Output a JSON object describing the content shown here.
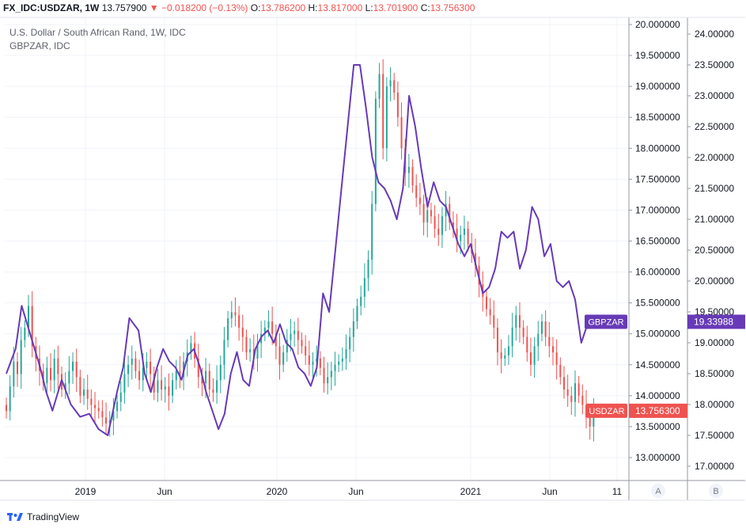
{
  "header": {
    "symbol": "FX_IDC:USDZAR, 1W",
    "last": "13.757900",
    "arrow": "▼",
    "change": "−0.018200 (−0.13%)",
    "o_label": "O:",
    "o_value": "13.786200",
    "h_label": "H:",
    "h_value": "13.817000",
    "l_label": "L:",
    "l_value": "13.701900",
    "c_label": "C:",
    "c_value": "13.756300"
  },
  "legend": {
    "main_title": "U.S. Dollar / South African Rand, 1W, IDC",
    "compare_title": "GBPZAR, IDC"
  },
  "scale_buttons": {
    "a": "A",
    "b": "B"
  },
  "branding": {
    "name": "TradingView"
  },
  "colors": {
    "up": "#26a69a",
    "down": "#ef5350",
    "compare_line": "#673ab7",
    "grid": "#f0f3fa",
    "axis_text": "#131722"
  },
  "chart_data": [
    {
      "type": "candlestick",
      "name": "USDZAR",
      "interval": "1W",
      "scale": "right",
      "ylim": [
        12.85,
        20.15
      ],
      "yticks": [
        "13.000000",
        "13.500000",
        "14.000000",
        "14.500000",
        "15.000000",
        "15.500000",
        "16.000000",
        "16.500000",
        "17.000000",
        "17.500000",
        "18.000000",
        "18.500000",
        "19.000000",
        "19.500000",
        "20.000000"
      ],
      "last_value_label": "13.756300",
      "closes": [
        13.75,
        14.15,
        14.55,
        14.35,
        14.9,
        15.1,
        15.45,
        14.8,
        14.6,
        14.4,
        14.2,
        14.45,
        14.25,
        14.6,
        14.35,
        14.1,
        14.2,
        14.4,
        14.55,
        14.3,
        14.0,
        14.1,
        13.95,
        13.85,
        13.8,
        13.75,
        13.65,
        13.55,
        13.6,
        13.75,
        13.9,
        14.05,
        14.35,
        14.5,
        14.6,
        14.4,
        14.25,
        14.45,
        14.55,
        14.35,
        14.05,
        14.25,
        14.1,
        14.15,
        14.0,
        14.25,
        14.4,
        14.3,
        14.55,
        14.7,
        14.85,
        14.6,
        14.3,
        14.2,
        14.4,
        14.1,
        14.05,
        14.25,
        14.5,
        14.9,
        15.25,
        15.35,
        15.3,
        15.1,
        14.95,
        14.7,
        14.75,
        14.6,
        14.85,
        15.0,
        15.1,
        15.2,
        15.0,
        14.8,
        14.5,
        14.7,
        14.9,
        15.0,
        15.05,
        14.9,
        14.8,
        14.65,
        14.5,
        14.55,
        14.6,
        14.45,
        14.2,
        14.3,
        14.4,
        14.5,
        14.55,
        14.6,
        14.75,
        14.95,
        15.2,
        15.45,
        15.6,
        15.9,
        16.2,
        17.1,
        18.8,
        19.2,
        18.0,
        19.0,
        19.1,
        18.9,
        18.5,
        18.0,
        17.6,
        17.7,
        17.4,
        17.2,
        17.1,
        16.8,
        17.0,
        16.9,
        16.7,
        16.6,
        16.9,
        17.1,
        16.8,
        16.7,
        16.5,
        16.6,
        16.7,
        16.45,
        16.3,
        16.1,
        15.8,
        15.6,
        15.4,
        15.3,
        15.1,
        14.7,
        14.6,
        14.65,
        14.8,
        15.1,
        15.3,
        15.1,
        14.95,
        14.7,
        14.5,
        14.8,
        15.0,
        15.2,
        14.95,
        14.8,
        14.7,
        14.5,
        14.3,
        14.1,
        14.0,
        13.9,
        14.2,
        14.0,
        13.85,
        13.65,
        13.5,
        13.75
      ],
      "x_ticks": [
        "2019",
        "Jun",
        "2020",
        "Jun",
        "2021",
        "Jun",
        "11"
      ]
    },
    {
      "type": "line",
      "name": "GBPZAR",
      "scale": "left",
      "ylim": [
        16.85,
        24.15
      ],
      "yticks": [
        "17.00000",
        "17.50000",
        "18.00000",
        "18.50000",
        "19.00000",
        "19.50000",
        "20.00000",
        "20.50000",
        "21.00000",
        "21.50000",
        "22.00000",
        "22.50000",
        "23.00000",
        "23.50000",
        "24.00000"
      ],
      "last_value_label": "19.33988",
      "points": [
        [
          0,
          18.5
        ],
        [
          3,
          18.9
        ],
        [
          5,
          19.6
        ],
        [
          8,
          19.1
        ],
        [
          11,
          18.6
        ],
        [
          13,
          18.2
        ],
        [
          15,
          17.9
        ],
        [
          18,
          18.4
        ],
        [
          21,
          18.0
        ],
        [
          24,
          17.8
        ],
        [
          27,
          17.85
        ],
        [
          30,
          17.6
        ],
        [
          33,
          17.5
        ],
        [
          36,
          18.2
        ],
        [
          38,
          18.6
        ],
        [
          40,
          19.4
        ],
        [
          43,
          19.2
        ],
        [
          45,
          18.5
        ],
        [
          47,
          18.2
        ],
        [
          49,
          18.6
        ],
        [
          51,
          18.9
        ],
        [
          53,
          18.7
        ],
        [
          55,
          18.6
        ],
        [
          57,
          18.4
        ],
        [
          59,
          18.8
        ],
        [
          61,
          18.9
        ],
        [
          63,
          18.6
        ],
        [
          65,
          18.2
        ],
        [
          67,
          17.9
        ],
        [
          69,
          17.6
        ],
        [
          71,
          17.85
        ],
        [
          73,
          18.5
        ],
        [
          75,
          18.85
        ],
        [
          77,
          18.4
        ],
        [
          79,
          18.3
        ],
        [
          81,
          18.9
        ],
        [
          83,
          19.1
        ],
        [
          85,
          19.2
        ],
        [
          87,
          19.0
        ],
        [
          89,
          19.3
        ],
        [
          91,
          19.0
        ],
        [
          93,
          18.9
        ],
        [
          95,
          18.6
        ],
        [
          97,
          18.5
        ],
        [
          99,
          18.3
        ],
        [
          101,
          18.6
        ],
        [
          103,
          19.8
        ],
        [
          105,
          19.5
        ],
        [
          107,
          20.5
        ],
        [
          109,
          21.5
        ],
        [
          111,
          22.5
        ],
        [
          113,
          23.5
        ],
        [
          115,
          23.5
        ],
        [
          117,
          22.8
        ],
        [
          119,
          22.0
        ],
        [
          121,
          21.6
        ],
        [
          123,
          21.5
        ],
        [
          125,
          21.3
        ],
        [
          127,
          21.0
        ],
        [
          129,
          21.5
        ],
        [
          131,
          23.0
        ],
        [
          133,
          22.5
        ],
        [
          135,
          21.8
        ],
        [
          137,
          21.2
        ],
        [
          139,
          21.6
        ],
        [
          141,
          21.3
        ],
        [
          143,
          21.2
        ],
        [
          145,
          20.9
        ],
        [
          147,
          20.6
        ],
        [
          149,
          20.4
        ],
        [
          151,
          20.6
        ],
        [
          153,
          20.2
        ],
        [
          155,
          19.8
        ],
        [
          157,
          19.9
        ],
        [
          159,
          20.2
        ],
        [
          161,
          20.8
        ],
        [
          163,
          20.7
        ],
        [
          165,
          20.8
        ],
        [
          167,
          20.2
        ],
        [
          169,
          20.5
        ],
        [
          171,
          21.2
        ],
        [
          173,
          21.0
        ],
        [
          175,
          20.4
        ],
        [
          177,
          20.6
        ],
        [
          179,
          20.0
        ],
        [
          181,
          19.9
        ],
        [
          183,
          20.0
        ],
        [
          185,
          19.7
        ],
        [
          187,
          19.0
        ],
        [
          189,
          19.3
        ],
        [
          191,
          19.34
        ]
      ],
      "x_ticks": [
        "2019",
        "Jun",
        "2020",
        "Jun",
        "2021",
        "Jun",
        "11"
      ]
    }
  ]
}
